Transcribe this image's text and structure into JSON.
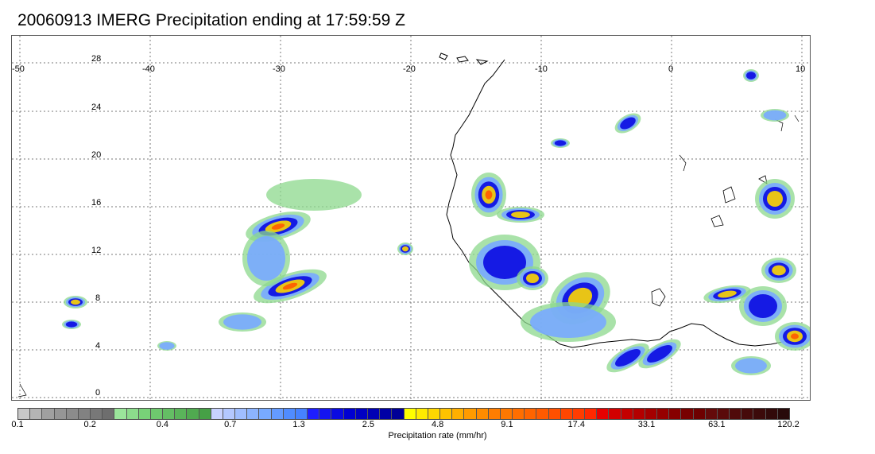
{
  "title": "20060913 IMERG Precipitation ending at 17:59:59 Z",
  "map": {
    "lon_labels": [
      "-50",
      "-40",
      "-30",
      "-20",
      "-10",
      "0",
      "10"
    ],
    "lat_labels": [
      "28",
      "24",
      "20",
      "16",
      "12",
      "8",
      "4",
      "0"
    ],
    "gridline_style": "dotted"
  },
  "colorbar": {
    "label": "Precipitation rate (mm/hr)",
    "tick_labels": [
      "0.1",
      "0.2",
      "0.4",
      "0.7",
      "1.3",
      "2.5",
      "4.8",
      "9.1",
      "17.4",
      "33.1",
      "63.1",
      "120.2"
    ],
    "colors": [
      "#c8c8c8",
      "#b4b4b4",
      "#a0a0a0",
      "#969696",
      "#8c8c8c",
      "#828282",
      "#787878",
      "#6e6e6e",
      "#9be69b",
      "#8cdc8c",
      "#78d278",
      "#6ec86e",
      "#64be64",
      "#5ab45a",
      "#50aa50",
      "#46a046",
      "#c8d2ff",
      "#b4c8ff",
      "#a0beff",
      "#8cb4ff",
      "#78aaff",
      "#649bff",
      "#508cff",
      "#4682ff",
      "#1e1eff",
      "#1414f0",
      "#0a0ae1",
      "#0000d2",
      "#0000c3",
      "#0000b4",
      "#0000a5",
      "#000096",
      "#ffff00",
      "#ffeb00",
      "#ffd700",
      "#ffc300",
      "#ffaf00",
      "#ff9b00",
      "#ff8c00",
      "#ff7d00",
      "#ff7800",
      "#ff6e00",
      "#ff6400",
      "#ff5a00",
      "#ff5000",
      "#ff4600",
      "#ff3c00",
      "#ff2800",
      "#e60000",
      "#d20000",
      "#c30000",
      "#b40000",
      "#a50000",
      "#960000",
      "#870000",
      "#780000",
      "#6e0000",
      "#640a0a",
      "#5a0a0a",
      "#500a0a",
      "#460a0a",
      "#3c0a0a",
      "#320a0a",
      "#280a0a"
    ]
  }
}
